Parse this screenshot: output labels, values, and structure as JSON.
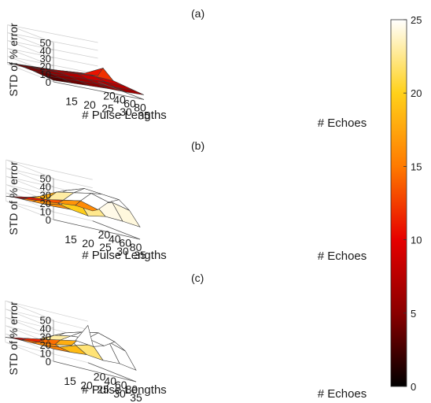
{
  "colorbar": {
    "ticks": [
      "25",
      "20",
      "15",
      "10",
      "5",
      "0"
    ],
    "range": [
      0,
      25
    ],
    "colormap": "hot",
    "stops": [
      "#000000",
      "#8a0000",
      "#e60000",
      "#ff7a00",
      "#ffd11a",
      "#ffffff"
    ]
  },
  "chart_data": [
    {
      "type": "surface",
      "title": "(a)",
      "xlabel": "# Pulse Lengths",
      "ylabel": "# Echoes",
      "zlabel": "STD of % error",
      "xticks": [
        "15",
        "20",
        "25",
        "30",
        "35"
      ],
      "yticks": [
        "80",
        "60",
        "40",
        "20"
      ],
      "zticks": [
        "50",
        "40",
        "30",
        "20",
        "10",
        "0"
      ],
      "zlim": [
        0,
        50
      ],
      "x": [
        10,
        15,
        20,
        25,
        30,
        35
      ],
      "y": [
        100,
        80,
        60,
        40,
        20,
        10
      ],
      "z": [
        [
          2,
          3,
          4,
          5,
          5,
          6
        ],
        [
          3,
          4,
          5,
          6,
          6,
          7
        ],
        [
          4,
          5,
          6,
          7,
          8,
          8
        ],
        [
          4,
          5,
          6,
          9,
          10,
          9
        ],
        [
          3,
          4,
          5,
          7,
          9,
          20
        ],
        [
          2,
          3,
          4,
          5,
          6,
          8
        ]
      ]
    },
    {
      "type": "surface",
      "title": "(b)",
      "xlabel": "# Pulse Lengths",
      "ylabel": "# Echoes",
      "zlabel": "STD of % error",
      "xticks": [
        "15",
        "20",
        "25",
        "30",
        "35"
      ],
      "yticks": [
        "80",
        "60",
        "40",
        "20"
      ],
      "zticks": [
        "50",
        "40",
        "30",
        "20",
        "10",
        "0"
      ],
      "zlim": [
        0,
        50
      ],
      "x": [
        10,
        15,
        20,
        25,
        30,
        35
      ],
      "y": [
        100,
        80,
        60,
        40,
        20,
        10
      ],
      "z": [
        [
          16,
          17,
          14,
          18,
          17,
          15
        ],
        [
          14,
          18,
          30,
          28,
          35,
          30
        ],
        [
          12,
          22,
          35,
          42,
          40,
          38
        ],
        [
          10,
          18,
          28,
          32,
          36,
          30
        ],
        [
          8,
          12,
          14,
          18,
          22,
          16
        ],
        [
          6,
          8,
          10,
          12,
          14,
          12
        ]
      ]
    },
    {
      "type": "surface",
      "title": "(c)",
      "xlabel": "# Pulse Lengths",
      "ylabel": "# Echoes",
      "zlabel": "STD of % error",
      "xticks": [
        "15",
        "20",
        "25",
        "30",
        "35"
      ],
      "yticks": [
        "80",
        "60",
        "40",
        "20"
      ],
      "zticks": [
        "50",
        "40",
        "30",
        "20",
        "10",
        "0"
      ],
      "zlim": [
        0,
        50
      ],
      "x": [
        10,
        15,
        20,
        25,
        30,
        35
      ],
      "y": [
        100,
        80,
        60,
        40,
        20,
        10
      ],
      "z": [
        [
          15,
          16,
          18,
          16,
          17,
          14
        ],
        [
          14,
          17,
          24,
          30,
          38,
          32
        ],
        [
          12,
          20,
          34,
          40,
          44,
          38
        ],
        [
          10,
          16,
          26,
          30,
          32,
          28
        ],
        [
          8,
          12,
          16,
          20,
          24,
          22
        ],
        [
          6,
          8,
          10,
          12,
          16,
          45
        ]
      ]
    }
  ]
}
